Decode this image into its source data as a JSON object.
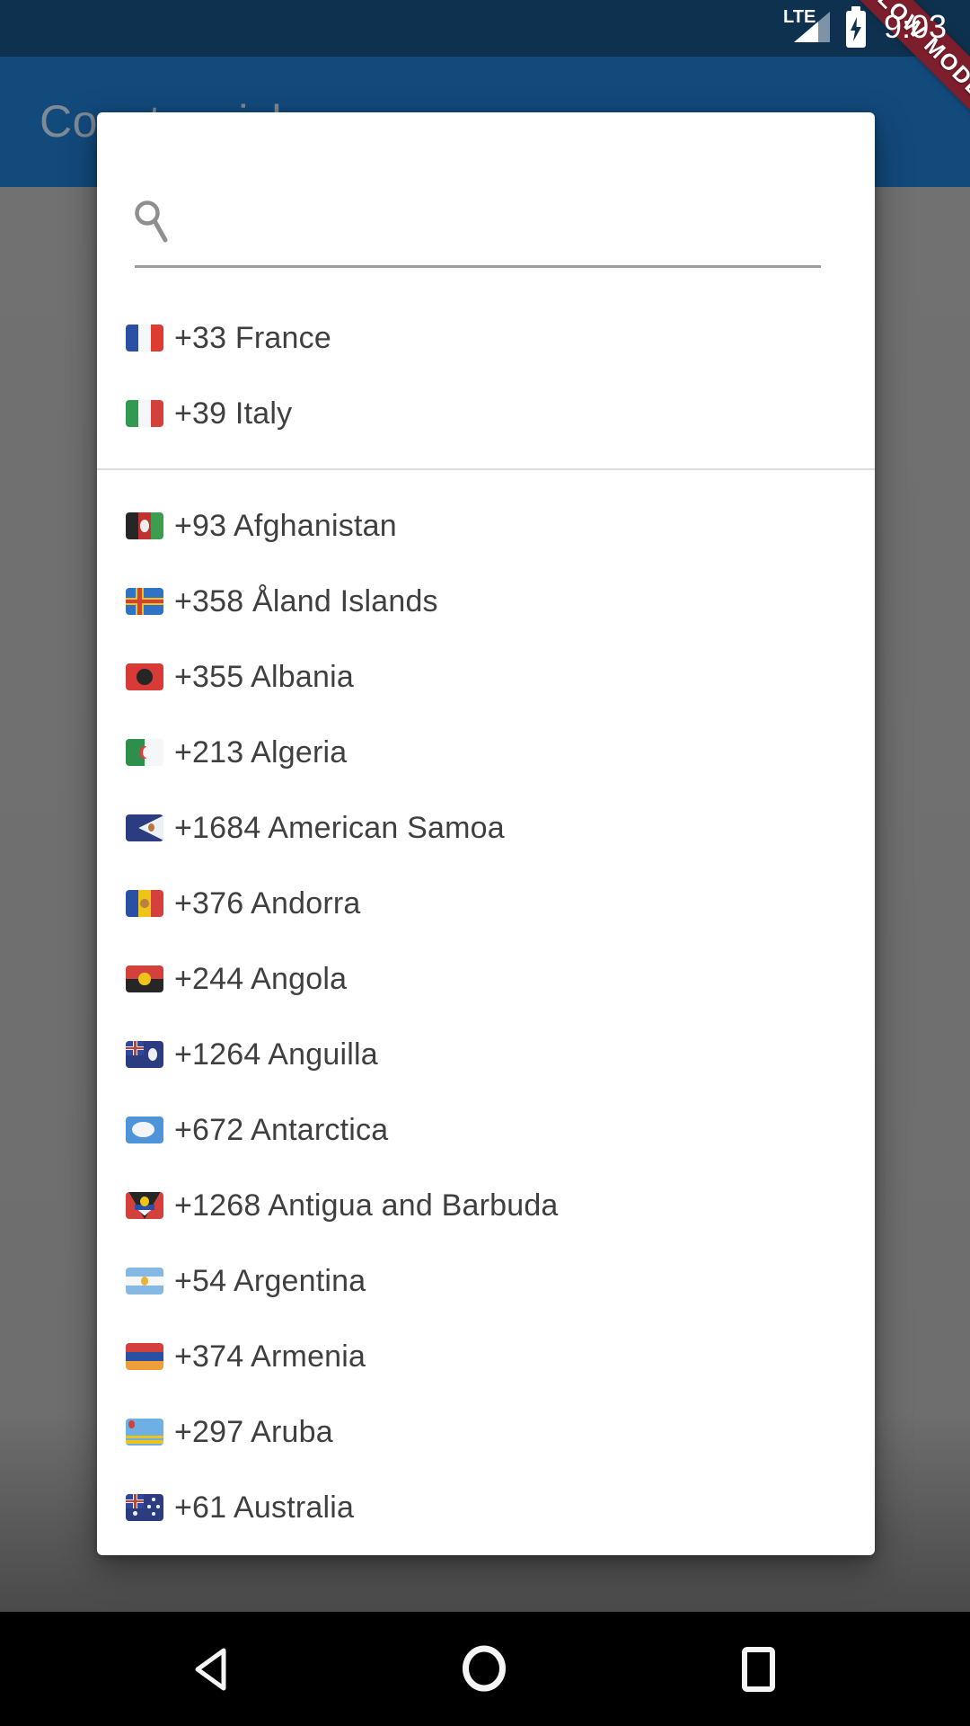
{
  "status_bar": {
    "network": "LTE",
    "time": "9:03"
  },
  "ribbon": {
    "label": "SLOW MODE",
    "color": "#7C1E2C"
  },
  "app_bar": {
    "title": "Country picker",
    "color": "#124A7C"
  },
  "dialog": {
    "search": {
      "value": "",
      "placeholder": ""
    },
    "favorites": [
      {
        "dial": "+33",
        "name": "France",
        "flag": "fr"
      },
      {
        "dial": "+39",
        "name": "Italy",
        "flag": "it"
      }
    ],
    "countries": [
      {
        "dial": "+93",
        "name": "Afghanistan",
        "flag": "af"
      },
      {
        "dial": "+358",
        "name": "Åland Islands",
        "flag": "ax"
      },
      {
        "dial": "+355",
        "name": "Albania",
        "flag": "al"
      },
      {
        "dial": "+213",
        "name": "Algeria",
        "flag": "dz"
      },
      {
        "dial": "+1684",
        "name": "American Samoa",
        "flag": "as"
      },
      {
        "dial": "+376",
        "name": "Andorra",
        "flag": "ad"
      },
      {
        "dial": "+244",
        "name": "Angola",
        "flag": "ao"
      },
      {
        "dial": "+1264",
        "name": "Anguilla",
        "flag": "ai"
      },
      {
        "dial": "+672",
        "name": "Antarctica",
        "flag": "aq"
      },
      {
        "dial": "+1268",
        "name": "Antigua and Barbuda",
        "flag": "ag"
      },
      {
        "dial": "+54",
        "name": "Argentina",
        "flag": "ar"
      },
      {
        "dial": "+374",
        "name": "Armenia",
        "flag": "am"
      },
      {
        "dial": "+297",
        "name": "Aruba",
        "flag": "aw"
      },
      {
        "dial": "+61",
        "name": "Australia",
        "flag": "au"
      }
    ],
    "flags": {
      "fr": [
        [
          "#2A50A5",
          0,
          0,
          34,
          100
        ],
        [
          "#F4F6F8",
          33,
          0,
          34,
          100
        ],
        [
          "#DD3C33",
          66,
          0,
          34,
          100
        ]
      ],
      "it": [
        [
          "#2F9A50",
          0,
          0,
          34,
          100
        ],
        [
          "#F4F6F8",
          33,
          0,
          34,
          100
        ],
        [
          "#D4403B",
          66,
          0,
          34,
          100
        ]
      ],
      "af": [
        [
          "#262626",
          0,
          0,
          34,
          100
        ],
        [
          "#BF3231",
          33,
          0,
          34,
          100
        ],
        [
          "#3D9C4E",
          66,
          0,
          34,
          100
        ],
        [
          "#EDEDED",
          37,
          26,
          26,
          48,
          "r"
        ]
      ],
      "ax": [
        [
          "#2F72C6",
          0,
          0,
          100,
          100
        ],
        [
          "#EFC418",
          0,
          36,
          100,
          28
        ],
        [
          "#EFC418",
          26,
          0,
          22,
          100
        ],
        [
          "#D4403B",
          0,
          43,
          100,
          14
        ],
        [
          "#D4403B",
          31,
          0,
          12,
          100
        ]
      ],
      "al": [
        [
          "#D83A35",
          0,
          0,
          100,
          100
        ],
        [
          "#262626",
          28,
          20,
          44,
          60,
          "r"
        ]
      ],
      "dz": [
        [
          "#2E8F4C",
          0,
          0,
          50,
          100
        ],
        [
          "#F4F6F8",
          50,
          0,
          50,
          100
        ],
        [
          "#D4403B",
          36,
          26,
          26,
          48,
          "r"
        ],
        [
          "#F4F6F8",
          45,
          30,
          22,
          40,
          "r"
        ]
      ],
      "as": [
        [
          "#2B3D80",
          0,
          0,
          100,
          100
        ],
        [
          "#EEF1F4",
          34,
          4,
          66,
          92,
          "polygon(100% 0,0 50%,100% 100%)"
        ],
        [
          "#B8763F",
          60,
          34,
          16,
          30,
          "r"
        ]
      ],
      "ad": [
        [
          "#2A50A5",
          0,
          0,
          34,
          100
        ],
        [
          "#EFC418",
          33,
          0,
          34,
          100
        ],
        [
          "#D4403B",
          66,
          0,
          34,
          100
        ],
        [
          "#B9813F",
          39,
          32,
          22,
          34,
          "r"
        ]
      ],
      "ao": [
        [
          "#D4403B",
          0,
          0,
          100,
          50
        ],
        [
          "#262626",
          0,
          50,
          100,
          50
        ],
        [
          "#EFC418",
          34,
          26,
          32,
          48,
          "r"
        ]
      ],
      "ai": [
        [
          "#2B3D80",
          0,
          0,
          100,
          100
        ],
        [
          "#31479E",
          0,
          0,
          48,
          54
        ],
        [
          "#E8ECF2",
          0,
          21,
          48,
          13
        ],
        [
          "#E8ECF2",
          18,
          0,
          12,
          54
        ],
        [
          "#C63F38",
          0,
          24,
          48,
          7
        ],
        [
          "#C63F38",
          21,
          0,
          7,
          54
        ],
        [
          "#EEF1F4",
          60,
          28,
          24,
          46,
          "r"
        ]
      ],
      "aq": [
        [
          "#4F94D8",
          0,
          0,
          100,
          100
        ],
        [
          "#F2F5F8",
          16,
          20,
          60,
          58,
          "r"
        ]
      ],
      "ag": [
        [
          "#D4403B",
          0,
          0,
          100,
          100
        ],
        [
          "#262626",
          8,
          0,
          84,
          100,
          "polygon(0 0,100% 0,50% 100%)"
        ],
        [
          "#2A50A5",
          24,
          46,
          52,
          20
        ],
        [
          "#F4F6F8",
          32,
          66,
          36,
          22,
          "polygon(0 0,100% 0,50% 100%)"
        ],
        [
          "#EFC418",
          38,
          16,
          24,
          36,
          "r"
        ]
      ],
      "ar": [
        [
          "#85B9E4",
          0,
          0,
          100,
          34
        ],
        [
          "#F4F6F8",
          0,
          33,
          100,
          34
        ],
        [
          "#85B9E4",
          0,
          66,
          100,
          34
        ],
        [
          "#E8B43A",
          40,
          32,
          20,
          36,
          "r"
        ]
      ],
      "am": [
        [
          "#D4403B",
          0,
          0,
          100,
          34
        ],
        [
          "#2A50A5",
          0,
          33,
          100,
          34
        ],
        [
          "#EF9F3A",
          0,
          66,
          100,
          34
        ]
      ],
      "aw": [
        [
          "#6FB0E4",
          0,
          0,
          100,
          100
        ],
        [
          "#EFC418",
          0,
          64,
          100,
          11
        ],
        [
          "#EFC418",
          0,
          81,
          100,
          11
        ],
        [
          "#D4403B",
          6,
          8,
          18,
          28,
          "r"
        ]
      ],
      "au": [
        [
          "#2B3D80",
          0,
          0,
          100,
          100
        ],
        [
          "#31479E",
          0,
          0,
          48,
          54
        ],
        [
          "#E8ECF2",
          0,
          21,
          48,
          13
        ],
        [
          "#E8ECF2",
          18,
          0,
          12,
          54
        ],
        [
          "#C63F38",
          0,
          24,
          48,
          7
        ],
        [
          "#C63F38",
          21,
          0,
          7,
          54
        ],
        [
          "#EEF1F4",
          70,
          12,
          9,
          14,
          "r"
        ],
        [
          "#EEF1F4",
          58,
          40,
          8,
          12,
          "r"
        ],
        [
          "#EEF1F4",
          82,
          40,
          8,
          12,
          "r"
        ],
        [
          "#EEF1F4",
          70,
          66,
          9,
          14,
          "r"
        ],
        [
          "#EEF1F4",
          20,
          64,
          11,
          17,
          "r"
        ]
      ]
    }
  },
  "icons": {
    "search": "search-icon",
    "signal": "signal-strength-icon",
    "battery": "battery-charging-icon",
    "back": "back-icon",
    "home": "home-icon",
    "recents": "recents-icon"
  },
  "colors": {
    "status_bar": "#0F3150",
    "app_bar": "#124A7C",
    "ribbon": "#7C1E2C",
    "scrim_gray": "#6F6F6F",
    "list_text": "#3F3F3F",
    "nav_bar": "#000000"
  }
}
